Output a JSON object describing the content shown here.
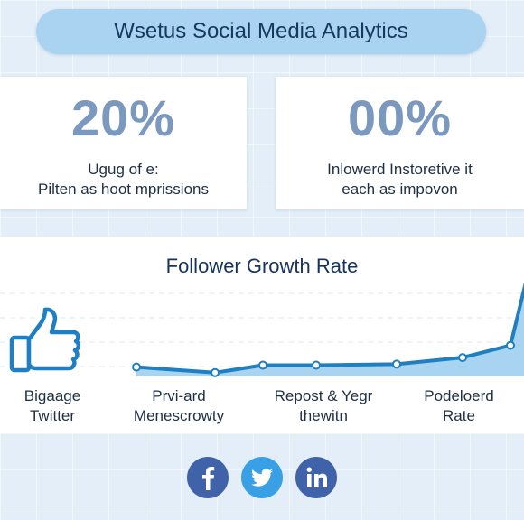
{
  "header": {
    "title": "Wsetus Social Media Analytics"
  },
  "stats": [
    {
      "value": "20%",
      "lines": [
        "Ugug of e:",
        "Pilten as hoot mprissions"
      ]
    },
    {
      "value": "00%",
      "lines": [
        "Inlowerd Instoretive it",
        "each as impovon"
      ]
    }
  ],
  "chart": {
    "title": "Follower Growth Rate",
    "captions": [
      {
        "lines": [
          "Bigaage",
          "Twitter"
        ]
      },
      {
        "lines": [
          "Prvi-ard",
          "Menescrowty"
        ]
      },
      {
        "lines": [
          "Repost & Yegr",
          "thewitn"
        ]
      },
      {
        "lines": [
          "Podeloerd",
          "Rate"
        ]
      }
    ]
  },
  "chart_data": {
    "type": "area",
    "title": "Follower Growth Rate",
    "series": [
      {
        "values": [
          {
            "x": 0,
            "y": 10
          },
          {
            "x": 1,
            "y": 4
          },
          {
            "x": 2,
            "y": 12
          },
          {
            "x": 3,
            "y": 12
          },
          {
            "x": 4,
            "y": 13
          },
          {
            "x": 5,
            "y": 20
          },
          {
            "x": 6,
            "y": 33
          },
          {
            "x": 7,
            "y": 100
          }
        ]
      }
    ],
    "ylim": [
      0,
      115
    ],
    "grid": true,
    "colors": {
      "line": "#1f7fc0",
      "fill": "#a8d4f2",
      "marker_fill": "#ffffff"
    }
  },
  "social": [
    {
      "name": "facebook-icon",
      "glyph": "f",
      "color": "#3f62a8"
    },
    {
      "name": "twitter-icon",
      "glyph": "bird",
      "color": "#3aa0e6"
    },
    {
      "name": "linkedin-icon",
      "glyph": "in",
      "color": "#3f62a8"
    }
  ],
  "colors": {
    "accent": "#a9d3f0",
    "stat": "#7b98bf",
    "text": "#1f2e44",
    "thumb": "#1e7fc4"
  }
}
